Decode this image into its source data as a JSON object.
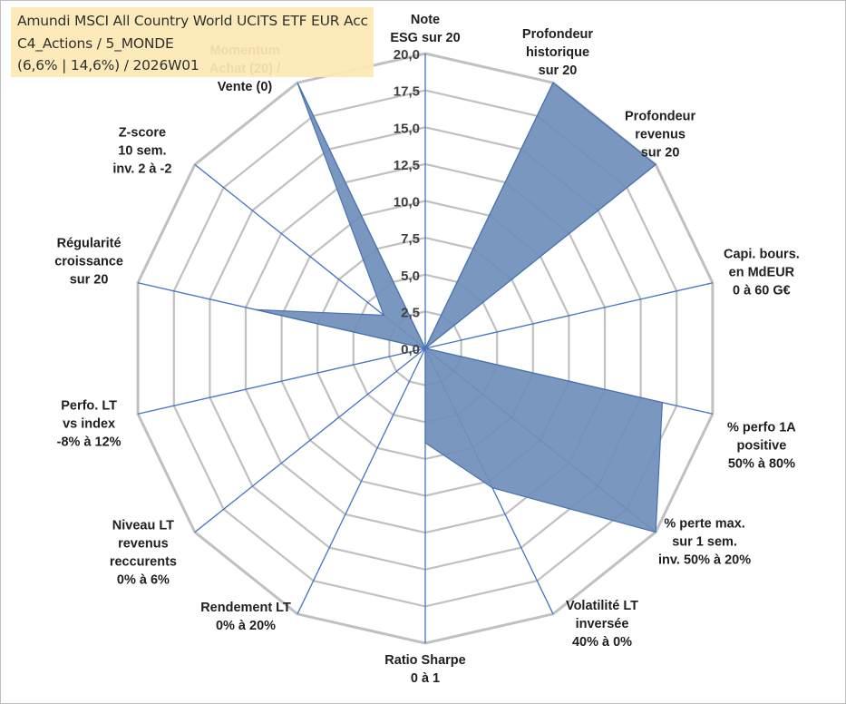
{
  "title_box": {
    "line1": "Amundi MSCI All Country World UCITS ETF EUR Acc",
    "line2": "C4_Actions / 5_MONDE",
    "line3": "(6,6% | 14,6%) / 2026W01"
  },
  "chart_data": {
    "type": "radar",
    "rmin": 0,
    "rmax": 20,
    "ticks": [
      0,
      2.5,
      5,
      7.5,
      10,
      12.5,
      15,
      17.5,
      20
    ],
    "tick_labels": [
      "0,0",
      "2,5",
      "5,0",
      "7,5",
      "10,0",
      "12,5",
      "15,0",
      "17,5",
      "20,0"
    ],
    "grid": true,
    "categories": [
      "Note\nESG sur 20",
      "Profondeur\nhistorique\nsur 20",
      "Profondeur\nrevenus\nsur 20",
      "Capi. bours.\nen MdEUR\n0 à 60 G€",
      "% perfo 1A\npositive\n50% à 80%",
      "% perte max.\nsur 1 sem.\ninv. 50% à 20%",
      "Volatilité LT\ninversée\n40% à 0%",
      "Ratio Sharpe\n0 à 1",
      "Rendement LT\n0% à 20%",
      "Niveau LT\nrevenus\nreccurents\n0% à 6%",
      "Perfo. LT\nvs index\n-8% à 12%",
      "Régularité\ncroissance\nsur 20",
      "Z-score\n10 sem.\ninv. 2 à -2",
      "Momentum\nAchat (20) /\nVente (0)"
    ],
    "series": [
      {
        "values": [
          0,
          20,
          20,
          0,
          16.5,
          20,
          10.5,
          6.4,
          0,
          0,
          0,
          11.8,
          3.6,
          20
        ],
        "color": "#6f8fba",
        "line_color": "#4a72b0"
      }
    ],
    "axis_color": "#4472c4",
    "grid_color": "#c0c0c0"
  }
}
